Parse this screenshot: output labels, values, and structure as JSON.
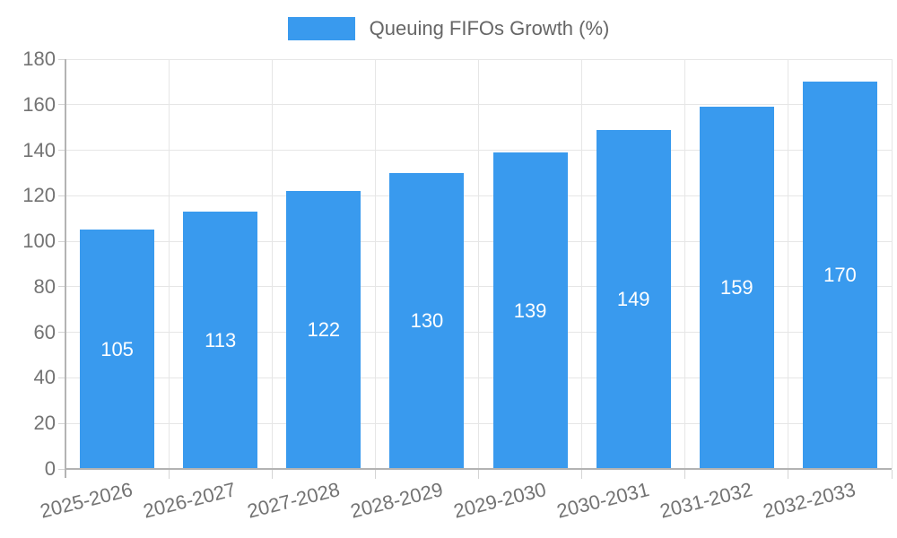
{
  "chart_data": {
    "type": "bar",
    "title": "Queuing FIFOs Growth (%)",
    "categories": [
      "2025-2026",
      "2026-2027",
      "2027-2028",
      "2028-2029",
      "2029-2030",
      "2030-2031",
      "2031-2032",
      "2032-2033"
    ],
    "values": [
      105,
      113,
      122,
      130,
      139,
      149,
      159,
      170
    ],
    "xlabel": "",
    "ylabel": "",
    "ylim": [
      0,
      180
    ],
    "yticks": [
      0,
      20,
      40,
      60,
      80,
      100,
      120,
      140,
      160,
      180
    ],
    "grid": "on",
    "legend_position": "top-center",
    "bar_color": "#399AEE",
    "bar_label_color": "#FFFFFF",
    "axis_line_color": "#B3B3B3",
    "gridline_color": "#E6E6E6",
    "tick_text_color": "#737373",
    "legend_text_color": "#666666"
  }
}
